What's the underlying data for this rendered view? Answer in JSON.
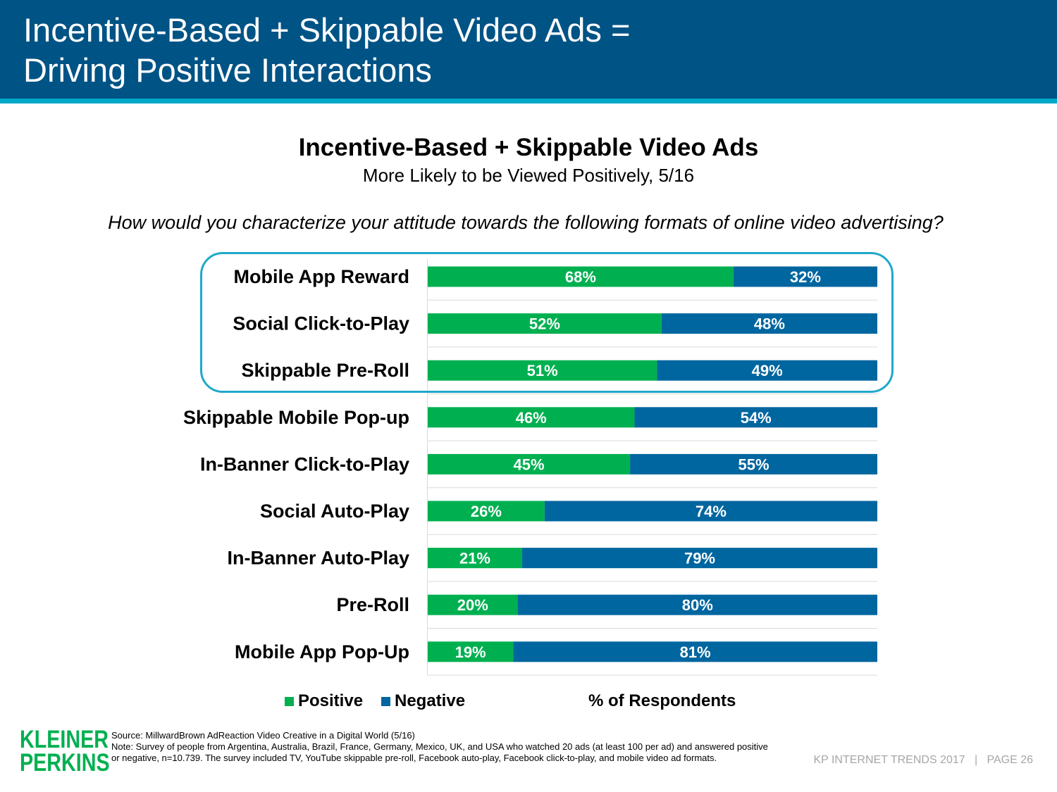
{
  "header": {
    "title": "Incentive-Based + Skippable Video Ads =\nDriving Positive Interactions"
  },
  "chart_data": {
    "type": "bar",
    "orientation": "horizontal",
    "stacked": true,
    "title": "Incentive-Based + Skippable Video Ads",
    "subtitle": "More Likely to be Viewed Positively, 5/16",
    "question": "How would you characterize your attitude towards the following formats of online video advertising?",
    "categories": [
      "Mobile App Reward",
      "Social Click-to-Play",
      "Skippable Pre-Roll",
      "Skippable Mobile Pop-up",
      "In-Banner Click-to-Play",
      "Social Auto-Play",
      "In-Banner Auto-Play",
      "Pre-Roll",
      "Mobile App Pop-Up"
    ],
    "series": [
      {
        "name": "Positive",
        "color": "#00b050",
        "values": [
          68,
          52,
          51,
          46,
          45,
          26,
          21,
          20,
          19
        ]
      },
      {
        "name": "Negative",
        "color": "#00669f",
        "values": [
          32,
          48,
          49,
          54,
          55,
          74,
          79,
          80,
          81
        ]
      }
    ],
    "xlim": [
      0,
      100
    ],
    "value_suffix": "%",
    "unit_label": "% of Respondents",
    "highlighted_categories": [
      "Mobile App Reward",
      "Social Click-to-Play",
      "Skippable Pre-Roll"
    ],
    "legend_position": "bottom",
    "highlight_color": "#1fa8c9"
  },
  "footer": {
    "logo_line1": "KLEINER",
    "logo_line2": "PERKINS",
    "source": "Source: MillwardBrown AdReaction Video Creative in a Digital World (5/16)",
    "note": "Note: Survey of people from Argentina, Australia, Brazil, France, Germany, Mexico, UK, and USA who watched 20 ads (at least 100 per ad) and answered positive or negative, n=10.739. The survey included TV, YouTube skippable pre-roll, Facebook auto-play, Facebook click-to-play, and mobile video ad formats.",
    "page_label": "KP INTERNET TRENDS 2017   |   PAGE 26"
  }
}
